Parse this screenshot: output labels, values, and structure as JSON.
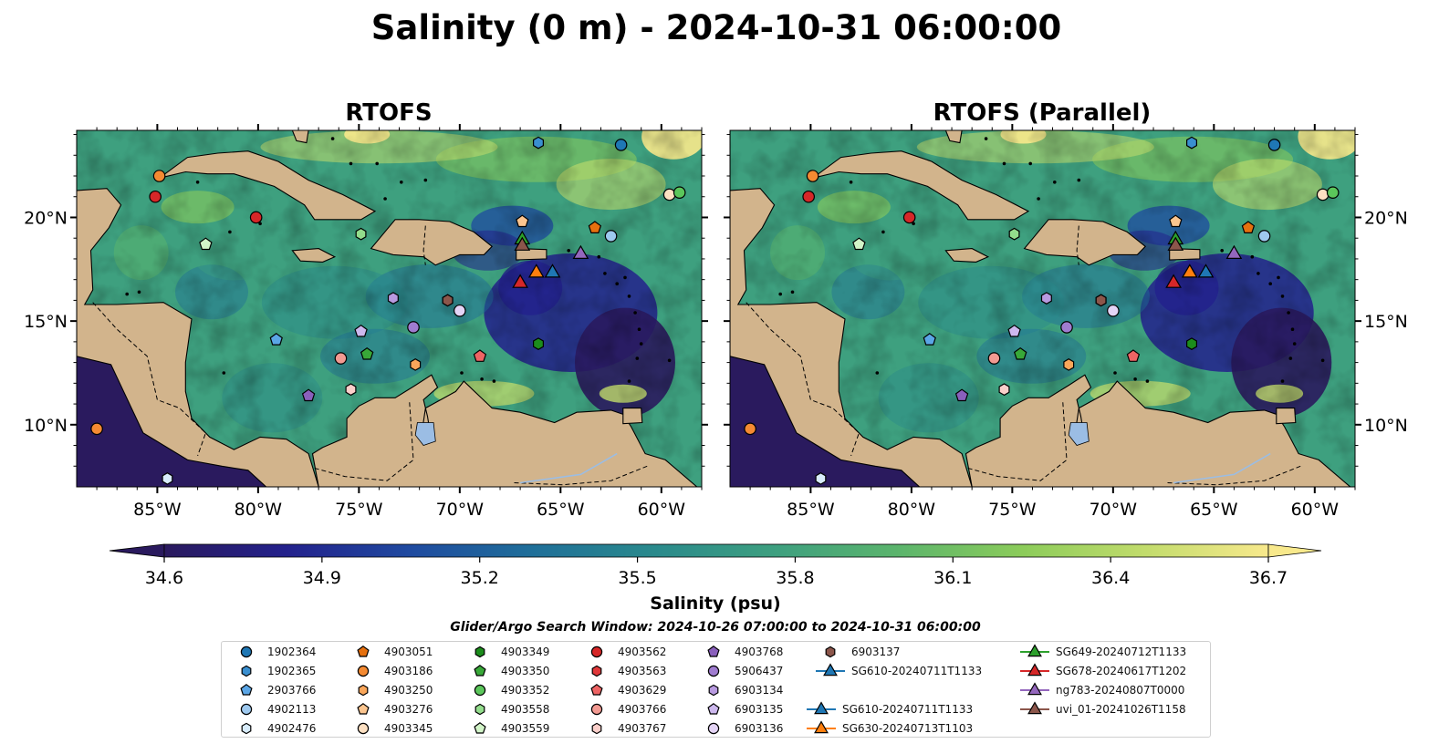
{
  "figure": {
    "title": "Salinity (0 m) - 2024-10-31 06:00:00",
    "left_panel_title": "RTOFS",
    "right_panel_title": "RTOFS (Parallel)",
    "colorbar_label": "Salinity (psu)",
    "colorbar_ticks": [
      "34.6",
      "34.9",
      "35.2",
      "35.5",
      "35.8",
      "36.1",
      "36.4",
      "36.7"
    ],
    "search_window": "Glider/Argo Search Window: 2024-10-26 07:00:00 to 2024-10-31 06:00:00"
  },
  "map": {
    "lon_range": [
      -89,
      -58
    ],
    "lat_range": [
      7,
      24.2
    ],
    "lon_ticks": [
      "85°W",
      "80°W",
      "75°W",
      "70°W",
      "65°W",
      "60°W"
    ],
    "lat_ticks": [
      "20°N",
      "15°N",
      "10°N"
    ],
    "colormap": [
      "#2a1a5e",
      "#23218c",
      "#1f4aa0",
      "#1f6f99",
      "#2a8a8c",
      "#3ea07f",
      "#5cb56c",
      "#8ccc5a",
      "#c2dc6c",
      "#f8e98c"
    ],
    "land_color": "#d2b48c",
    "ocean_dark": "#2a1a5e",
    "lake_color": "#9bbde4"
  },
  "legend": {
    "items": [
      {
        "label": "1902364",
        "marker": "circle",
        "color": "#1f77b4"
      },
      {
        "label": "1902365",
        "marker": "hexagon",
        "color": "#3a8fd0"
      },
      {
        "label": "2903766",
        "marker": "pentagon",
        "color": "#5ba6e6"
      },
      {
        "label": "4902113",
        "marker": "circle",
        "color": "#9ec9ef"
      },
      {
        "label": "4902476",
        "marker": "hexagon",
        "color": "#d8ecfb"
      },
      {
        "label": "4903051",
        "marker": "pentagon",
        "color": "#e6700e"
      },
      {
        "label": "4903186",
        "marker": "circle",
        "color": "#f48a32"
      },
      {
        "label": "4903250",
        "marker": "hexagon",
        "color": "#f9a65a"
      },
      {
        "label": "4903276",
        "marker": "pentagon",
        "color": "#fbc58f"
      },
      {
        "label": "4903345",
        "marker": "circle",
        "color": "#fde0c2"
      },
      {
        "label": "4903349",
        "marker": "hexagon",
        "color": "#1c8c1c"
      },
      {
        "label": "4903350",
        "marker": "pentagon",
        "color": "#38a838"
      },
      {
        "label": "4903352",
        "marker": "circle",
        "color": "#5bc65b"
      },
      {
        "label": "4903558",
        "marker": "hexagon",
        "color": "#93dd8c"
      },
      {
        "label": "4903559",
        "marker": "pentagon",
        "color": "#d2f4c8"
      },
      {
        "label": "4903562",
        "marker": "circle",
        "color": "#d62728"
      },
      {
        "label": "4903563",
        "marker": "hexagon",
        "color": "#e0383a"
      },
      {
        "label": "4903629",
        "marker": "pentagon",
        "color": "#ee6464"
      },
      {
        "label": "4903766",
        "marker": "circle",
        "color": "#f39a92"
      },
      {
        "label": "4903767",
        "marker": "hexagon",
        "color": "#fbcfca"
      },
      {
        "label": "4903768",
        "marker": "pentagon",
        "color": "#8a60bc"
      },
      {
        "label": "5906437",
        "marker": "circle",
        "color": "#a07cd0"
      },
      {
        "label": "6903134",
        "marker": "hexagon",
        "color": "#b89ae0"
      },
      {
        "label": "6903135",
        "marker": "pentagon",
        "color": "#cdb8ee"
      },
      {
        "label": "6903136",
        "marker": "circle",
        "color": "#e4d4f6"
      },
      {
        "label": "6903137",
        "marker": "hexagon",
        "color": "#8c564b"
      },
      {
        "label": "SG610-20240711T1133",
        "marker": "triangle",
        "color": "#1f77b4"
      },
      {
        "label": "SG630-20240713T1103",
        "marker": "triangle",
        "color": "#ff7f0e"
      },
      {
        "label": "SG649-20240712T1133",
        "marker": "triangle",
        "color": "#2ca02c"
      },
      {
        "label": "SG678-20240617T1202",
        "marker": "triangle",
        "color": "#d62728"
      },
      {
        "label": "ng783-20240807T0000",
        "marker": "triangle",
        "color": "#9467bd"
      },
      {
        "label": "uvi_01-20241026T1158",
        "marker": "triangle",
        "color": "#8c564b"
      }
    ]
  },
  "observations": [
    {
      "id": "1902364",
      "lon": -62.0,
      "lat": 23.5
    },
    {
      "id": "1902365",
      "lon": -66.1,
      "lat": 23.6
    },
    {
      "id": "2903766",
      "lon": -79.1,
      "lat": 14.1
    },
    {
      "id": "4902113",
      "lon": -62.5,
      "lat": 19.1
    },
    {
      "id": "4902476",
      "lon": -84.5,
      "lat": 7.4
    },
    {
      "id": "4903051",
      "lon": -63.3,
      "lat": 19.5
    },
    {
      "id": "4903186",
      "lon": -88.0,
      "lat": 9.8
    },
    {
      "id": "4903250",
      "lon": -72.2,
      "lat": 12.9
    },
    {
      "id": "4903276",
      "lon": -66.9,
      "lat": 19.8
    },
    {
      "id": "4903345",
      "lon": -59.6,
      "lat": 21.1
    },
    {
      "id": "4903349",
      "lon": -66.1,
      "lat": 13.9
    },
    {
      "id": "4903350",
      "lon": -74.6,
      "lat": 13.4
    },
    {
      "id": "4903352",
      "lon": -59.1,
      "lat": 21.2
    },
    {
      "id": "4903558",
      "lon": -74.9,
      "lat": 19.2
    },
    {
      "id": "4903559",
      "lon": -82.6,
      "lat": 18.7
    },
    {
      "id": "4903562",
      "lon": -85.1,
      "lat": 21.0
    },
    {
      "id": "4903563",
      "lon": -70.6,
      "lat": 16.0
    },
    {
      "id": "4903629",
      "lon": -69.0,
      "lat": 13.3
    },
    {
      "id": "4903766",
      "lon": -75.9,
      "lat": 13.2
    },
    {
      "id": "4903767",
      "lon": -75.4,
      "lat": 11.7
    },
    {
      "id": "4903768",
      "lon": -77.5,
      "lat": 11.4
    },
    {
      "id": "5906437",
      "lon": -72.3,
      "lat": 14.7
    },
    {
      "id": "6903134",
      "lon": -73.3,
      "lat": 16.1
    },
    {
      "id": "6903135",
      "lon": -74.9,
      "lat": 14.5
    },
    {
      "id": "6903136",
      "lon": -70.0,
      "lat": 15.5
    },
    {
      "id": "6903137",
      "lon": -70.6,
      "lat": 16.0
    },
    {
      "id": "4903186",
      "lon": -84.9,
      "lat": 22.0
    },
    {
      "id": "4903562",
      "lon": -80.1,
      "lat": 20.0
    }
  ],
  "gliders": [
    {
      "id": "SG610-20240711T1133",
      "lon": -65.4,
      "lat": 17.4
    },
    {
      "id": "SG630-20240713T1103",
      "lon": -66.2,
      "lat": 17.4
    },
    {
      "id": "SG649-20240712T1133",
      "lon": -66.9,
      "lat": 19.0
    },
    {
      "id": "SG678-20240617T1202",
      "lon": -67.0,
      "lat": 16.9
    },
    {
      "id": "ng783-20240807T0000",
      "lon": -64.0,
      "lat": 18.3
    },
    {
      "id": "uvi_01-20241026T1158",
      "lon": -66.9,
      "lat": 18.7
    }
  ]
}
